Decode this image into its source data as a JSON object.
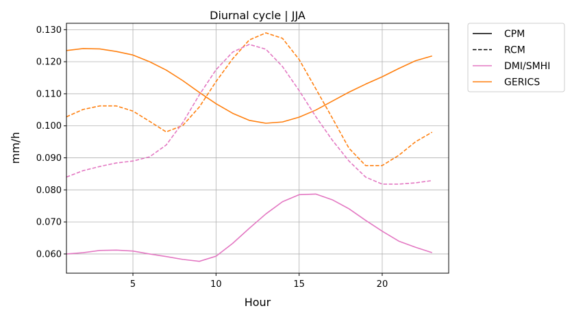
{
  "chart_data": {
    "type": "line",
    "title": "Diurnal cycle | JJA",
    "xlabel": "Hour",
    "ylabel": "mm/h",
    "xlim": [
      1,
      24
    ],
    "ylim": [
      0.054,
      0.132
    ],
    "xticks": [
      5,
      10,
      15,
      20
    ],
    "yticks": [
      0.06,
      0.07,
      0.08,
      0.09,
      0.1,
      0.11,
      0.12,
      0.13
    ],
    "ytick_labels": [
      "0.060",
      "0.070",
      "0.080",
      "0.090",
      "0.100",
      "0.110",
      "0.120",
      "0.130"
    ],
    "grid": true,
    "legend_position": "outside-top-right",
    "legend": [
      {
        "label": "CPM",
        "color": "#000000",
        "style": "solid"
      },
      {
        "label": "RCM",
        "color": "#000000",
        "style": "dashed"
      },
      {
        "label": "DMI/SMHI",
        "color": "#e377c2",
        "style": "solid"
      },
      {
        "label": "GERICS",
        "color": "#ff7f0e",
        "style": "solid"
      }
    ],
    "series": [
      {
        "model": "GERICS",
        "type": "CPM",
        "color": "#ff7f0e",
        "style": "solid",
        "x": [
          1,
          2,
          3,
          4,
          5,
          6,
          7,
          8,
          9,
          10,
          11,
          12,
          13,
          14,
          15,
          16,
          17,
          18,
          19,
          20,
          21,
          22,
          23
        ],
        "values": [
          0.1235,
          0.1241,
          0.124,
          0.1232,
          0.1221,
          0.12,
          0.1174,
          0.1141,
          0.1104,
          0.1069,
          0.1039,
          0.1017,
          0.1008,
          0.1012,
          0.1027,
          0.1049,
          0.1077,
          0.1105,
          0.113,
          0.1153,
          0.1179,
          0.1203,
          0.1218
        ]
      },
      {
        "model": "GERICS",
        "type": "RCM",
        "color": "#ff7f0e",
        "style": "dashed",
        "x": [
          1,
          2,
          3,
          4,
          5,
          6,
          7,
          8,
          9,
          10,
          11,
          12,
          13,
          14,
          15,
          16,
          17,
          18,
          19,
          20,
          21,
          22,
          23
        ],
        "values": [
          0.1028,
          0.1051,
          0.1062,
          0.1062,
          0.1046,
          0.1014,
          0.0981,
          0.1001,
          0.1059,
          0.1138,
          0.1209,
          0.1268,
          0.129,
          0.1273,
          0.1207,
          0.1116,
          0.1024,
          0.093,
          0.0876,
          0.0876,
          0.0908,
          0.095,
          0.098
        ]
      },
      {
        "model": "DMI/SMHI",
        "type": "RCM",
        "color": "#e377c2",
        "style": "dashed",
        "x": [
          1,
          2,
          3,
          4,
          5,
          6,
          7,
          8,
          9,
          10,
          11,
          12,
          13,
          14,
          15,
          16,
          17,
          18,
          19,
          20,
          21,
          22,
          23
        ],
        "values": [
          0.084,
          0.086,
          0.0873,
          0.0884,
          0.089,
          0.0903,
          0.094,
          0.101,
          0.1097,
          0.1175,
          0.123,
          0.1254,
          0.1239,
          0.1185,
          0.111,
          0.1029,
          0.0955,
          0.089,
          0.084,
          0.0818,
          0.0818,
          0.0822,
          0.0829
        ]
      },
      {
        "model": "DMI/SMHI",
        "type": "CPM",
        "color": "#e377c2",
        "style": "solid",
        "x": [
          1,
          2,
          3,
          4,
          5,
          6,
          7,
          8,
          9,
          10,
          11,
          12,
          13,
          14,
          15,
          16,
          17,
          18,
          19,
          20,
          21,
          22,
          23
        ],
        "values": [
          0.06,
          0.0604,
          0.0611,
          0.0612,
          0.0609,
          0.06,
          0.0592,
          0.0583,
          0.0577,
          0.0593,
          0.0633,
          0.068,
          0.0725,
          0.0763,
          0.0785,
          0.0787,
          0.0769,
          0.0741,
          0.0705,
          0.0671,
          0.064,
          0.0621,
          0.0604
        ]
      }
    ]
  }
}
